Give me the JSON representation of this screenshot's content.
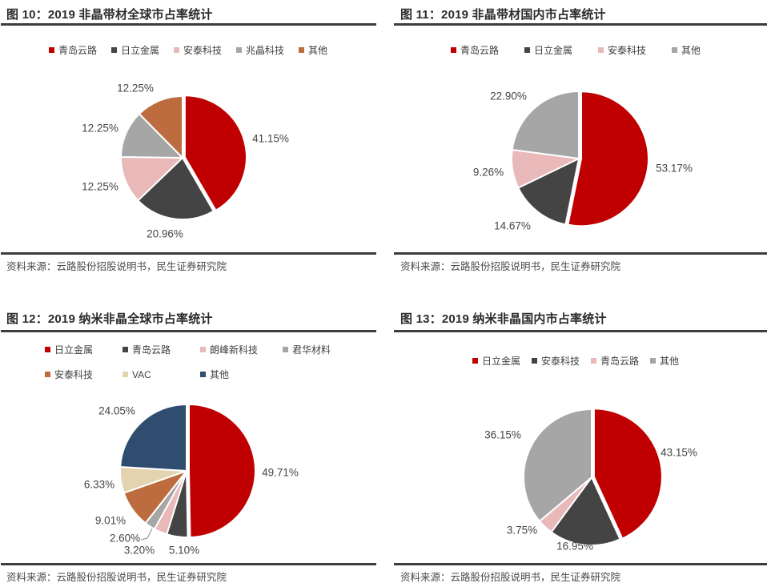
{
  "page": {
    "background": "#FFFFFF",
    "source_label": "资料来源：云路股份招股说明书，民生证券研究院"
  },
  "palette": {
    "red": "#C00000",
    "dark_gray": "#444444",
    "pink": "#E8B9B8",
    "gray": "#A6A6A6",
    "brown": "#BC6C3E",
    "cream": "#E3D3AE",
    "navy": "#2F4E6F",
    "rule": "#3D3D3D"
  },
  "chart_data": [
    {
      "type": "pie",
      "title": "图 10：2019 非晶带材全球市占率统计",
      "legend_position": "top",
      "source": "资料来源：云路股份招股说明书，民生证券研究院",
      "labels": [
        "青岛云路",
        "日立金属",
        "安泰科技",
        "兆晶科技",
        "其他"
      ],
      "values": [
        41.15,
        20.96,
        12.25,
        12.25,
        12.25
      ],
      "displays": [
        "41.15%",
        "20.96%",
        "12.25%",
        "12.25%",
        "12.25%"
      ],
      "colors": [
        "#C00000",
        "#444444",
        "#E8B9B8",
        "#A6A6A6",
        "#BC6C3E"
      ]
    },
    {
      "type": "pie",
      "title": "图 11：2019 非晶带材国内市占率统计",
      "legend_position": "top",
      "source": "资料来源：云路股份招股说明书，民生证券研究院",
      "labels": [
        "青岛云路",
        "日立金属",
        "安泰科技",
        "其他"
      ],
      "values": [
        53.17,
        14.67,
        9.26,
        22.9
      ],
      "displays": [
        "53.17%",
        "14.67%",
        "9.26%",
        "22.90%"
      ],
      "colors": [
        "#C00000",
        "#444444",
        "#E8B9B8",
        "#A6A6A6"
      ]
    },
    {
      "type": "pie",
      "title": "图 12：2019 纳米非晶全球市占率统计",
      "legend_position": "top",
      "source": "资料来源：云路股份招股说明书，民生证券研究院",
      "labels": [
        "日立金属",
        "青岛云路",
        "朗峰新科技",
        "君华材料",
        "安泰科技",
        "VAC",
        "其他"
      ],
      "values": [
        49.71,
        5.1,
        3.2,
        2.6,
        9.01,
        6.33,
        24.05
      ],
      "displays": [
        "49.71%",
        "5.10%",
        "3.20%",
        "2.60%",
        "9.01%",
        "6.33%",
        "24.05%"
      ],
      "colors": [
        "#C00000",
        "#444444",
        "#E8B9B8",
        "#A6A6A6",
        "#BC6C3E",
        "#E3D3AE",
        "#2F4E6F"
      ]
    },
    {
      "type": "pie",
      "title": "图 13：2019 纳米非晶国内市占率统计",
      "legend_position": "top",
      "source": "资料来源：云路股份招股说明书，民生证券研究院",
      "labels": [
        "日立金属",
        "安泰科技",
        "青岛云路",
        "其他"
      ],
      "values": [
        43.15,
        16.95,
        3.75,
        36.15
      ],
      "displays": [
        "43.15%",
        "16.95%",
        "3.75%",
        "36.15%"
      ],
      "colors": [
        "#C00000",
        "#444444",
        "#E8B9B8",
        "#A6A6A6"
      ]
    }
  ]
}
